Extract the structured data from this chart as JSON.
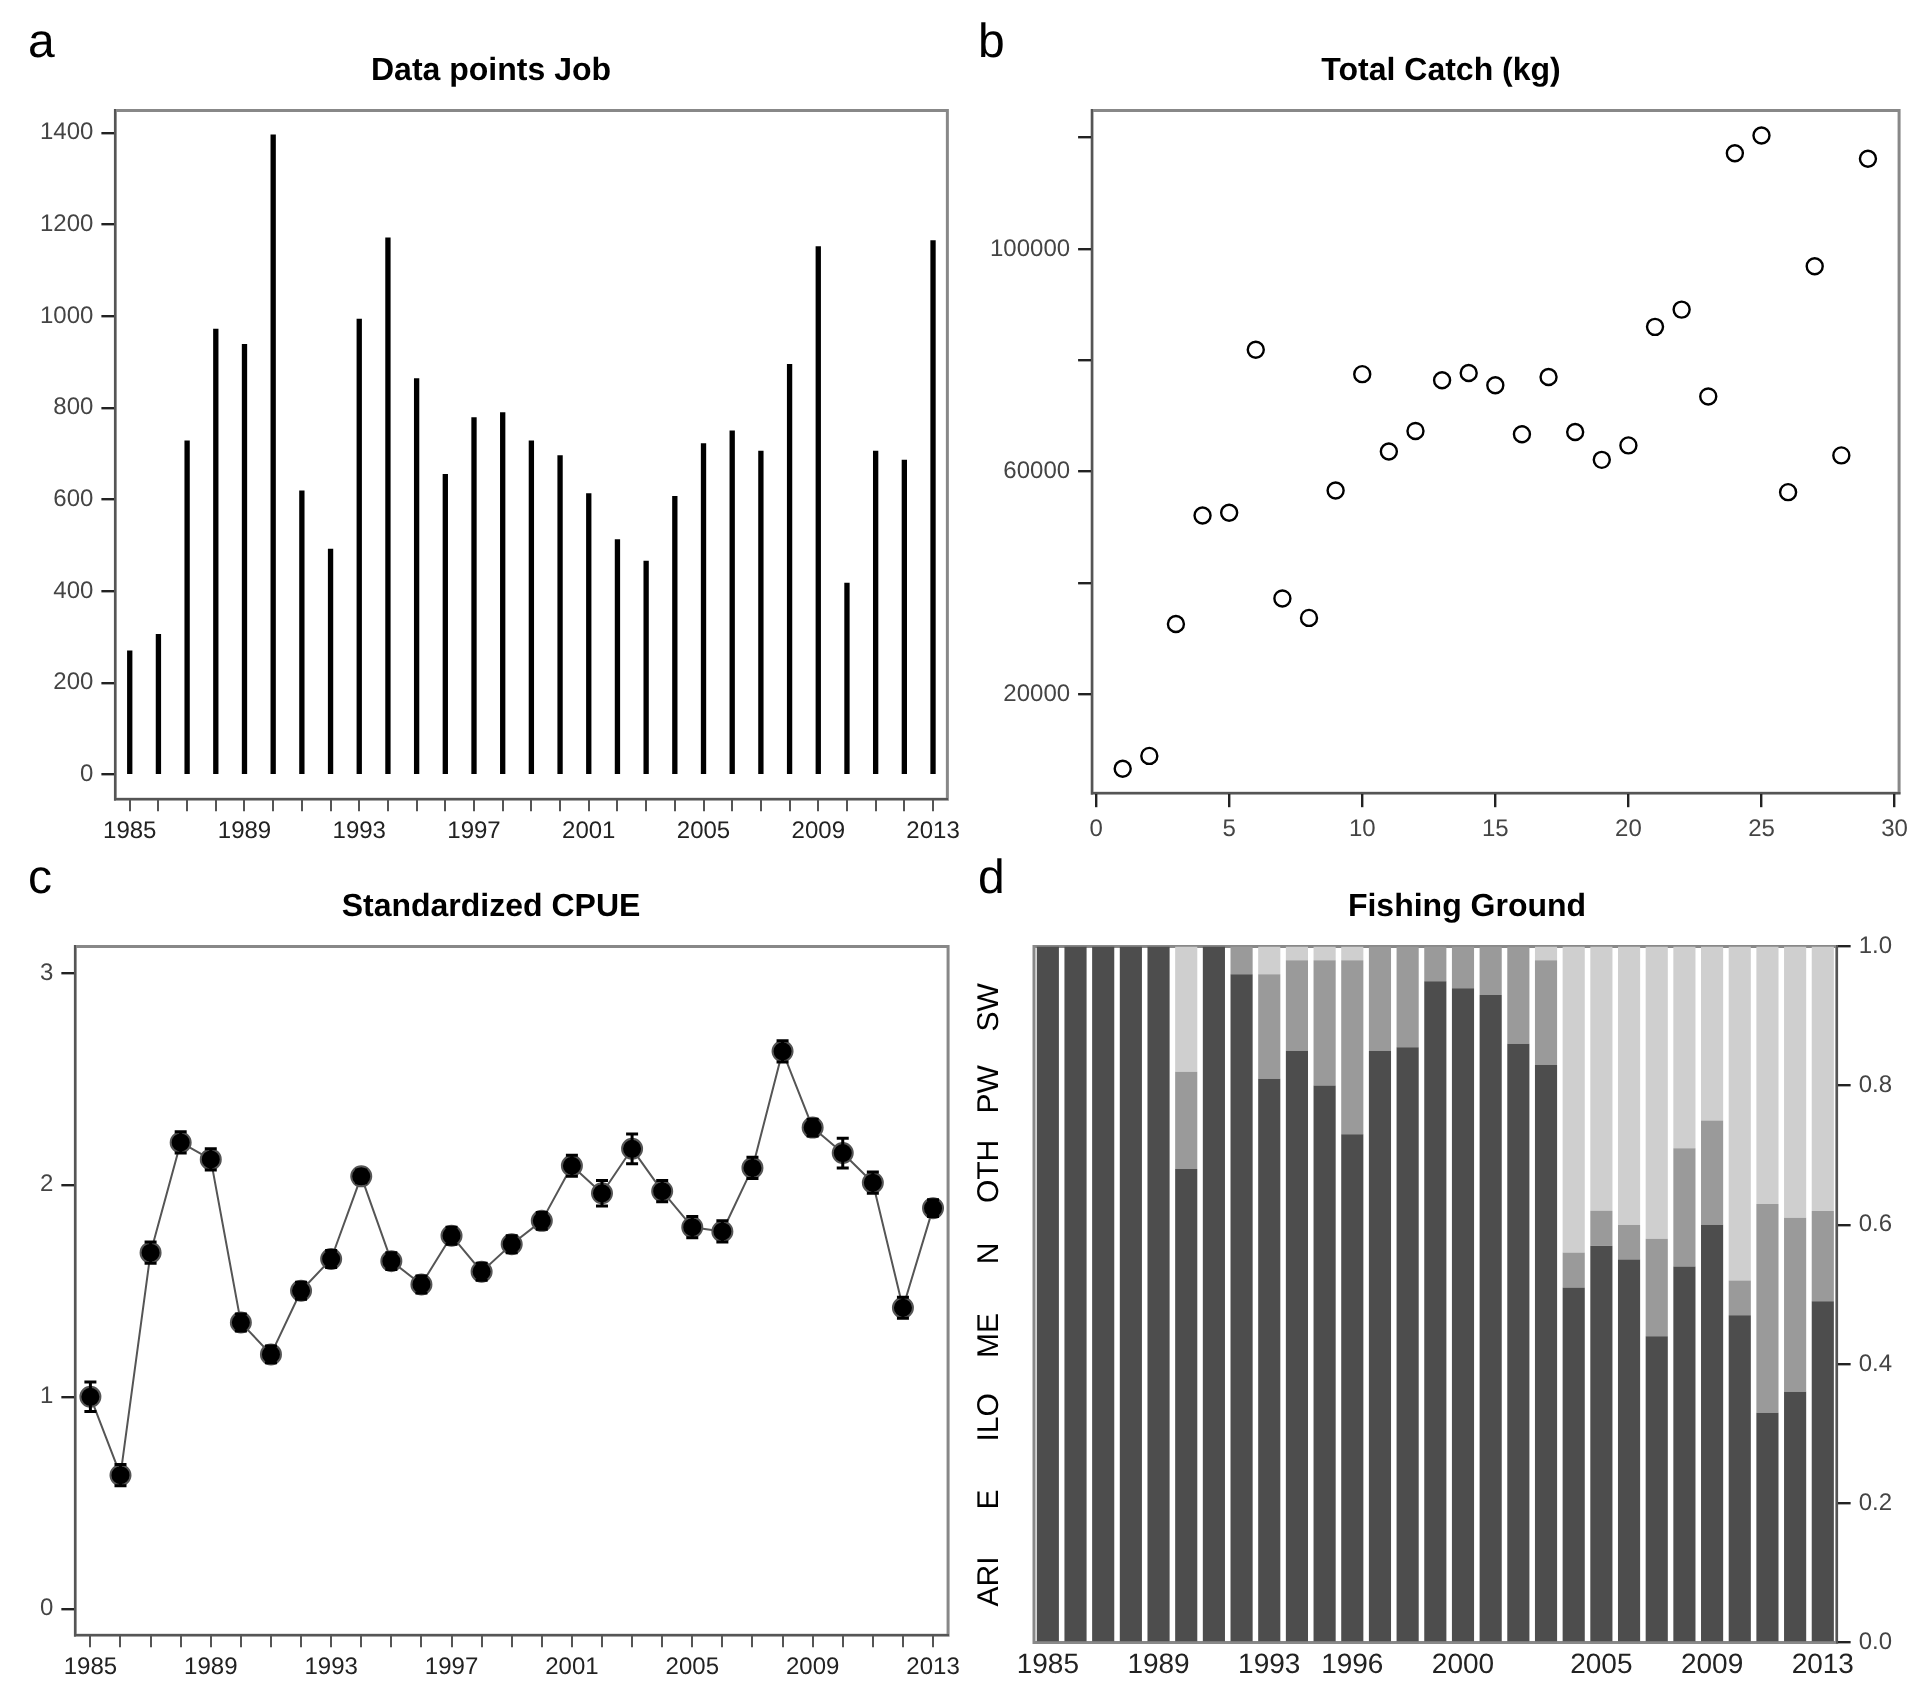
{
  "chart_data": [
    {
      "type": "bar",
      "title": "Data points Job",
      "categories": [
        "1985",
        null,
        null,
        null,
        "1989",
        null,
        null,
        null,
        "1993",
        null,
        null,
        null,
        "1997",
        null,
        null,
        null,
        "2001",
        null,
        null,
        null,
        "2005",
        null,
        null,
        null,
        "2009",
        null,
        null,
        null,
        "2013"
      ],
      "values": [
        269,
        305,
        727,
        971,
        938,
        1395,
        618,
        491,
        993,
        1170,
        863,
        654,
        778,
        789,
        727,
        695,
        612,
        512,
        465,
        606,
        721,
        749,
        705,
        894,
        1151,
        417,
        705,
        685,
        1164
      ],
      "color": "#000000",
      "ylim": [
        -54,
        1449
      ],
      "yticks": [
        0,
        200,
        400,
        600,
        800,
        1000,
        1200,
        1400
      ],
      "annotations": [
        "a"
      ]
    },
    {
      "type": "scatter",
      "title": "Total Catch (kg)",
      "x": [
        1,
        2,
        3,
        4,
        5,
        6,
        7,
        8,
        9,
        10,
        11,
        12,
        13,
        14,
        15,
        16,
        17,
        18,
        19,
        20,
        21,
        22,
        23,
        24,
        25,
        26,
        27,
        28,
        29
      ],
      "values": [
        6600,
        8900,
        32600,
        52100,
        52600,
        81900,
        37200,
        33700,
        56600,
        77500,
        63600,
        67300,
        76400,
        77700,
        75500,
        66700,
        77000,
        67100,
        62100,
        64700,
        86000,
        89100,
        73500,
        117200,
        120400,
        56300,
        96900,
        62900,
        116200
      ],
      "color": "#000000",
      "marker": "circle",
      "xlim": [
        -0.15,
        30.17
      ],
      "xticks": [
        0,
        5,
        10,
        15,
        20,
        25,
        30
      ],
      "ylim": [
        2200,
        124900
      ],
      "yticks": [
        20000,
        {
          "value": 40000,
          "label": null
        },
        60000,
        {
          "value": 80000,
          "label": null
        },
        100000,
        {
          "value": 120000,
          "label": null
        }
      ],
      "annotations": [
        "b"
      ]
    },
    {
      "type": "line",
      "title": "Standardized CPUE",
      "categories": [
        "1985",
        null,
        null,
        null,
        "1989",
        null,
        null,
        null,
        "1993",
        null,
        null,
        null,
        "1997",
        null,
        null,
        null,
        "2001",
        null,
        null,
        null,
        "2005",
        null,
        null,
        null,
        "2009",
        null,
        null,
        null,
        "2013"
      ],
      "values": [
        1.0,
        0.63,
        1.68,
        2.2,
        2.12,
        1.35,
        1.2,
        1.5,
        1.65,
        2.04,
        1.64,
        1.53,
        1.76,
        1.59,
        1.72,
        1.83,
        2.09,
        1.96,
        2.17,
        1.97,
        1.8,
        1.78,
        2.08,
        2.63,
        2.27,
        2.15,
        2.01,
        1.42,
        1.89
      ],
      "errors": [
        0.07,
        0.05,
        0.05,
        0.05,
        0.05,
        0.04,
        0.04,
        0.04,
        0.04,
        0.03,
        0.04,
        0.04,
        0.04,
        0.04,
        0.04,
        0.04,
        0.05,
        0.06,
        0.07,
        0.05,
        0.05,
        0.05,
        0.05,
        0.05,
        0.04,
        0.07,
        0.05,
        0.05,
        0.04
      ],
      "color": "#000000",
      "marker": "circle",
      "ylim": [
        -0.125,
        3.125
      ],
      "yticks": [
        0,
        1,
        2,
        3
      ],
      "annotations": [
        "c"
      ]
    },
    {
      "type": "bar",
      "stacked": true,
      "title": "Fishing Ground",
      "categories": [
        "1985",
        null,
        null,
        null,
        "1989",
        null,
        null,
        null,
        "1993",
        null,
        null,
        "1996",
        null,
        null,
        null,
        "2000",
        null,
        null,
        null,
        null,
        "2005",
        null,
        null,
        null,
        "2009",
        null,
        null,
        null,
        "2013"
      ],
      "series": [
        {
          "color": "#4d4d4d",
          "axis": "y2",
          "values": [
            1,
            1,
            1,
            1,
            1,
            0.68,
            1,
            0.96,
            0.81,
            0.85,
            0.8,
            0.73,
            0.85,
            0.855,
            0.95,
            0.94,
            0.93,
            0.86,
            0.83,
            0.51,
            0.57,
            0.55,
            0.44,
            0.54,
            0.6,
            0.47,
            0.33,
            0.36,
            0.49
          ]
        },
        {
          "color": "#9a9a9a",
          "axis": "y2",
          "values": [
            0,
            0,
            0,
            0,
            0,
            0.14,
            0,
            0.04,
            0.15,
            0.13,
            0.18,
            0.25,
            0.15,
            0.145,
            0.05,
            0.06,
            0.07,
            0.14,
            0.15,
            0.05,
            0.05,
            0.05,
            0.14,
            0.17,
            0.15,
            0.05,
            0.3,
            0.25,
            0.13
          ]
        },
        {
          "color": "#cfcfcf",
          "axis": "y2",
          "values": [
            0,
            0,
            0,
            0,
            0,
            0.18,
            0,
            0,
            0.04,
            0.02,
            0.02,
            0.02,
            0,
            0,
            0,
            0,
            0,
            0,
            0.02,
            0.44,
            0.38,
            0.4,
            0.42,
            0.29,
            0.25,
            0.48,
            0.37,
            0.39,
            0.38
          ]
        }
      ],
      "y2lim": [
        0,
        1
      ],
      "y2ticks": [
        {
          "value": 0,
          "label": "0.0"
        },
        {
          "value": 0.2,
          "label": "0.2"
        },
        {
          "value": 0.4,
          "label": "0.4"
        },
        {
          "value": 0.6,
          "label": "0.6"
        },
        {
          "value": 0.8,
          "label": "0.8"
        },
        {
          "value": 1,
          "label": "1.0"
        }
      ],
      "annotations": [
        "d",
        "ARI",
        "E",
        "ILO",
        "ME",
        "N",
        "OTH",
        "PW",
        "SW"
      ]
    }
  ]
}
